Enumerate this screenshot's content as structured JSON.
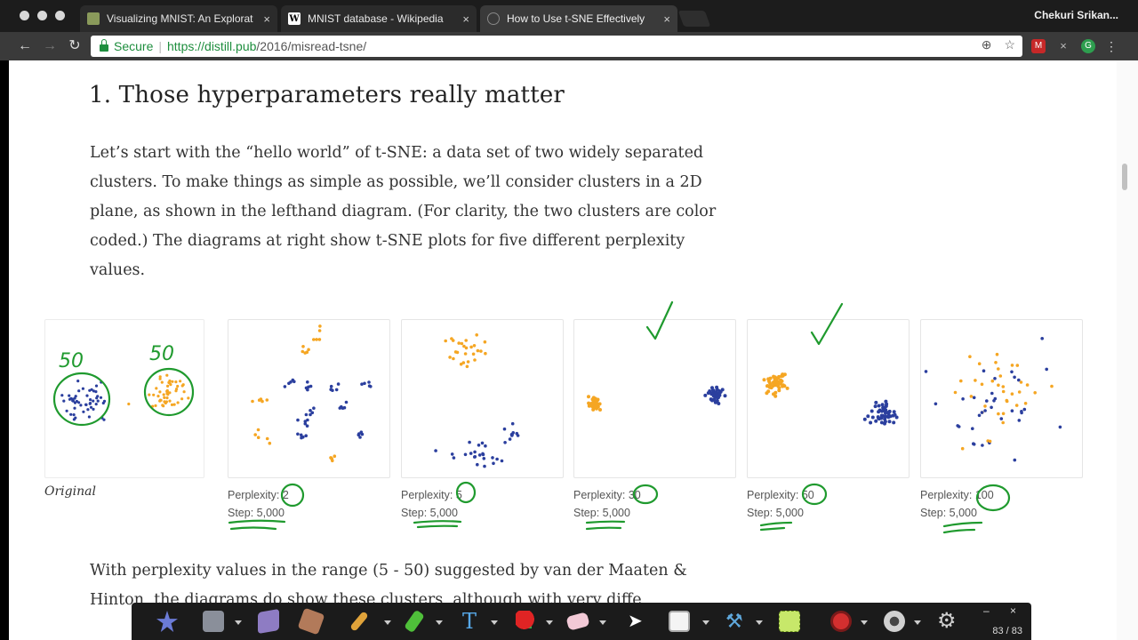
{
  "browser": {
    "tabs": [
      {
        "title": "Visualizing MNIST: An Explorat",
        "favicon": "image-icon",
        "active": false
      },
      {
        "title": "MNIST database - Wikipedia",
        "favicon": "W",
        "active": false
      },
      {
        "title": "How to Use t-SNE Effectively",
        "favicon": "page-icon",
        "active": true
      }
    ],
    "close_glyph": "×",
    "user": "Chekuri Srikan...",
    "secure_label": "Secure",
    "url_scheme": "https://",
    "url_host": "distill.pub",
    "url_path": "/2016/misread-tsne/"
  },
  "article": {
    "heading": "1. Those hyperparameters really matter",
    "paragraph1": "Let’s start with the “hello world” of t-SNE: a data set of two widely separated clusters. To make things as simple as possible, we’ll consider clusters in a 2D plane, as shown in the lefthand diagram. (For clarity, the two clusters are color coded.) The diagrams at right show t-SNE plots for five different perplexity values.",
    "paragraph2": "With perplexity values in the range (5 - 50) suggested by van der Maaten & Hinton, the diagrams do show these clusters, although with very diffe",
    "original_label": "Original",
    "original_annotations": [
      "50",
      "50"
    ],
    "colors": {
      "blue": "#2b3f9e",
      "orange": "#f5a623"
    },
    "plots": [
      {
        "perplexity_label": "Perplexity:",
        "perplexity": "2",
        "step_label": "Step:",
        "step": "5,000"
      },
      {
        "perplexity_label": "Perplexity:",
        "perplexity": "5",
        "step_label": "Step:",
        "step": "5,000"
      },
      {
        "perplexity_label": "Perplexity:",
        "perplexity": "30",
        "step_label": "Step:",
        "step": "5,000"
      },
      {
        "perplexity_label": "Perplexity:",
        "perplexity": "50",
        "step_label": "Step:",
        "step": "5,000"
      },
      {
        "perplexity_label": "Perplexity:",
        "perplexity": "100",
        "step_label": "Step:",
        "step": "5,000"
      }
    ]
  },
  "annotation_toolbar": {
    "page_indicator": "83 / 83",
    "minimize": "–",
    "close": "×",
    "tools": [
      "star-icon",
      "save-icon",
      "eraser-pad-icon",
      "layers-icon",
      "pencil-icon",
      "highlighter-icon",
      "text-icon",
      "shapes-icon",
      "eraser-icon",
      "pointer-icon",
      "whiteboard-icon",
      "hammer-icon",
      "color-swatch-icon",
      "record-icon",
      "webcam-icon",
      "settings-icon"
    ]
  }
}
